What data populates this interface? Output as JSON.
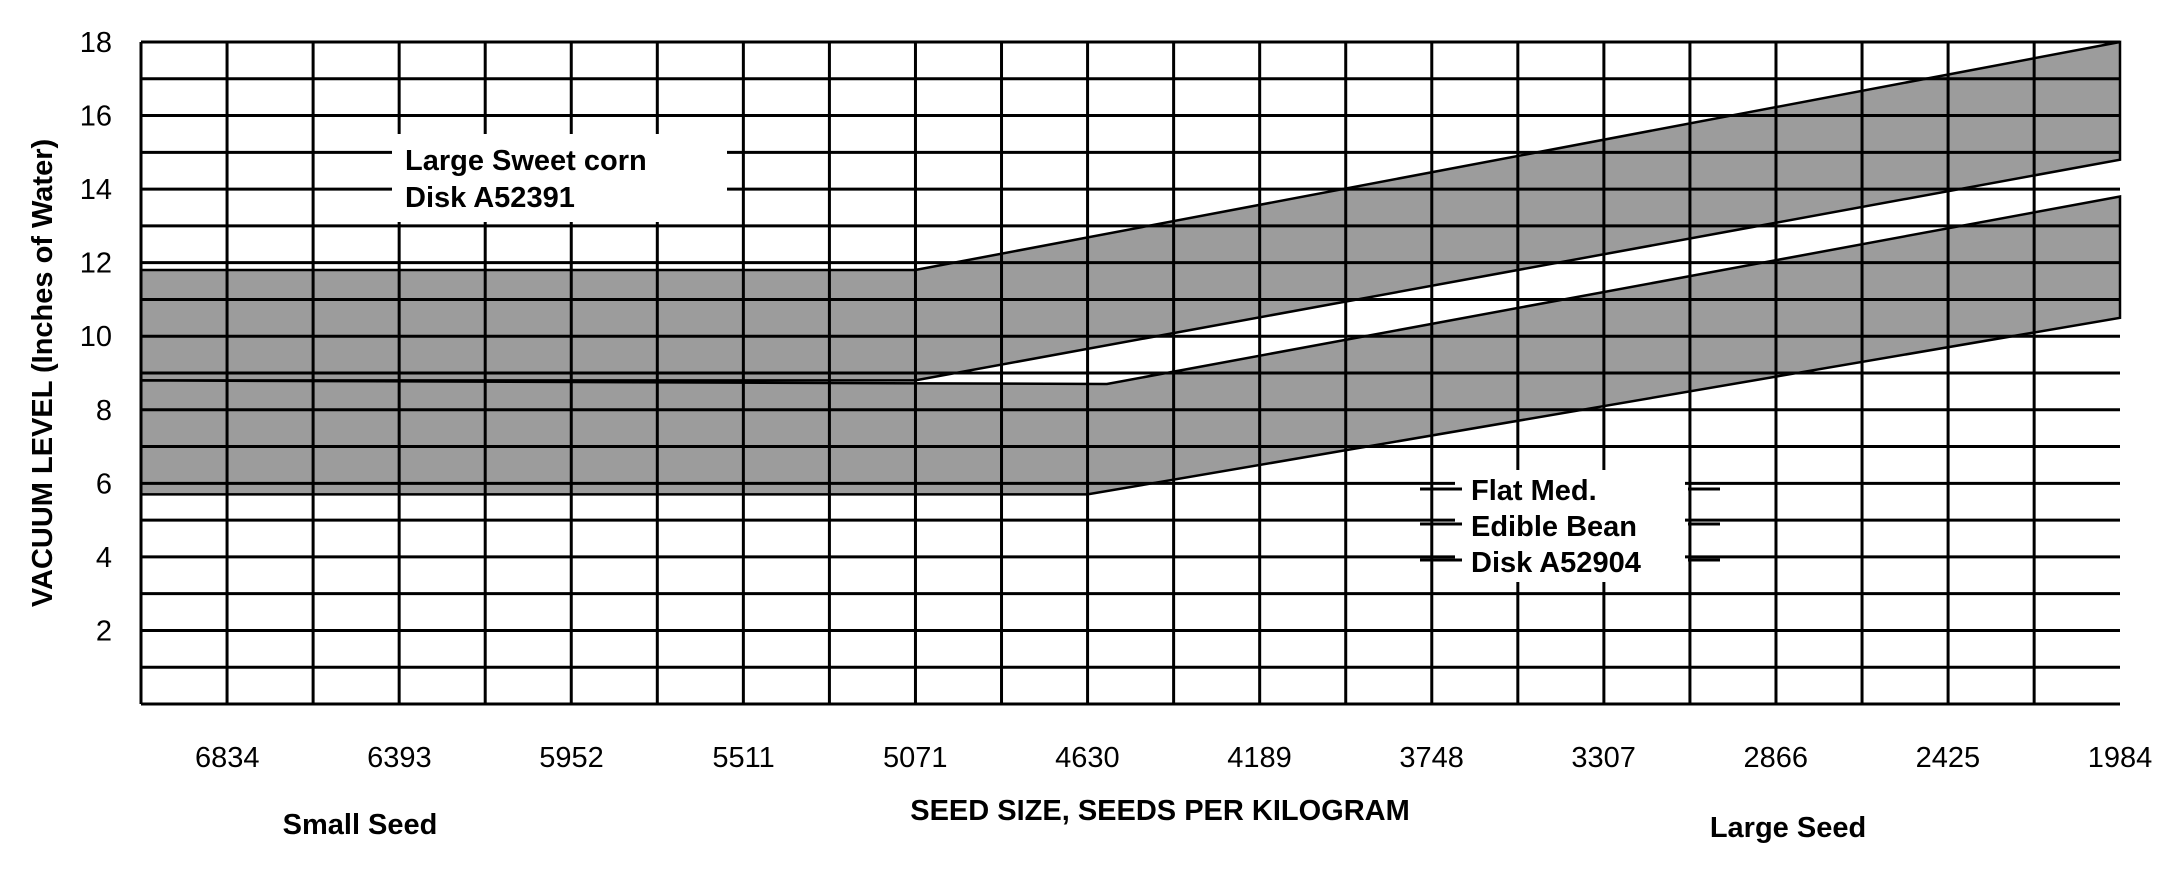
{
  "chart_data": {
    "type": "area",
    "title": "",
    "xlabel": "SEED SIZE, SEEDS PER KILOGRAM",
    "ylabel": "VACUUM LEVEL (Inches of Water)",
    "x_end_labels": {
      "left": "Small Seed",
      "right": "Large Seed"
    },
    "xlim": [
      7055,
      1984
    ],
    "ylim": [
      0,
      18
    ],
    "x_grid_step": 220.5,
    "y_grid_step": 1,
    "grid": true,
    "x_ticks": [
      6834,
      6393,
      5952,
      5511,
      5071,
      4630,
      4189,
      3748,
      3307,
      2866,
      2425,
      1984
    ],
    "x_tick_labels": [
      "6834",
      "6393",
      "5952",
      "5511",
      "5071",
      "4630",
      "4189",
      "3748",
      "3307",
      "2866",
      "2425",
      "1984"
    ],
    "y_ticks": [
      2,
      4,
      6,
      8,
      10,
      12,
      14,
      16,
      18
    ],
    "y_tick_labels": [
      "2",
      "4",
      "6",
      "8",
      "10",
      "12",
      "14",
      "16",
      "18"
    ],
    "series": [
      {
        "name": "Large Sweet corn Disk A52391",
        "label_lines": [
          "Large Sweet corn",
          "Disk A52391"
        ],
        "upper": [
          [
            7055,
            11.8
          ],
          [
            5071,
            11.8
          ],
          [
            1984,
            18.0
          ]
        ],
        "lower": [
          [
            7055,
            8.8
          ],
          [
            5071,
            8.8
          ],
          [
            1984,
            14.8
          ]
        ],
        "color": "#9c9c9c"
      },
      {
        "name": "Flat Med. Edible Bean Disk A52904",
        "label_lines": [
          "Flat Med.",
          "Edible Bean",
          "Disk A52904"
        ],
        "upper": [
          [
            7055,
            8.8
          ],
          [
            4580,
            8.7
          ],
          [
            1984,
            13.8
          ]
        ],
        "lower": [
          [
            7055,
            5.7
          ],
          [
            4630,
            5.7
          ],
          [
            1984,
            10.5
          ]
        ],
        "color": "#9c9c9c"
      }
    ]
  }
}
